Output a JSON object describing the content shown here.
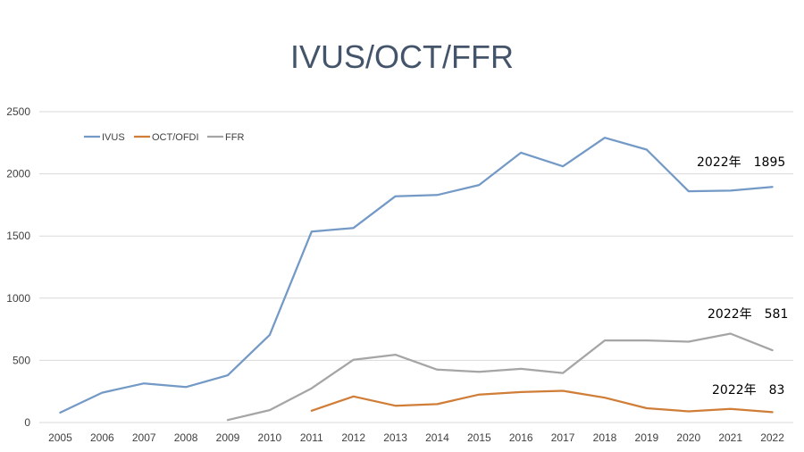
{
  "chart_data": {
    "type": "line",
    "title": "IVUS/OCT/FFR",
    "xlabel": "",
    "ylabel": "",
    "ylim": [
      0,
      2500
    ],
    "yticks": [
      0,
      500,
      1000,
      1500,
      2000,
      2500
    ],
    "grid": true,
    "legend_position": "top-left",
    "categories": [
      "2005",
      "2006",
      "2007",
      "2008",
      "2009",
      "2010",
      "2011",
      "2012",
      "2013",
      "2014",
      "2015",
      "2016",
      "2017",
      "2018",
      "2019",
      "2020",
      "2021",
      "2022"
    ],
    "series": [
      {
        "name": "IVUS",
        "color": "#7399c6",
        "values": [
          80,
          240,
          315,
          285,
          380,
          705,
          1535,
          1565,
          1820,
          1830,
          1910,
          2170,
          2060,
          2290,
          2195,
          1860,
          1865,
          1895
        ]
      },
      {
        "name": "OCT/OFDI",
        "color": "#d07d38",
        "values": [
          null,
          null,
          null,
          null,
          null,
          null,
          95,
          210,
          135,
          148,
          225,
          245,
          255,
          200,
          115,
          90,
          110,
          83
        ]
      },
      {
        "name": "FFR",
        "color": "#a5a5a5",
        "values": [
          null,
          null,
          null,
          null,
          20,
          100,
          275,
          505,
          545,
          425,
          408,
          432,
          398,
          660,
          660,
          650,
          715,
          581
        ]
      }
    ],
    "annotations": [
      {
        "text": "2022年　1895",
        "series": "IVUS"
      },
      {
        "text": "2022年　581",
        "series": "FFR"
      },
      {
        "text": "2022年　83",
        "series": "OCT/OFDI"
      }
    ]
  }
}
